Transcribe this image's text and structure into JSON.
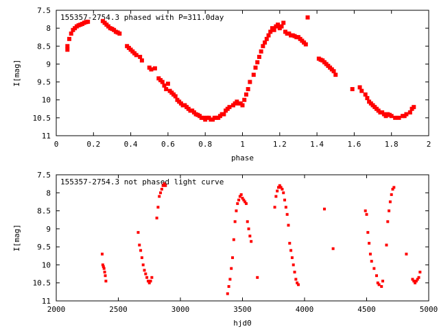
{
  "chart_data": [
    {
      "type": "scatter",
      "title": "155357-2754.3 phased with P=311.0day",
      "xlabel": "phase",
      "ylabel": "I[mag]",
      "xlim": [
        0,
        2
      ],
      "ylim": [
        7.5,
        11
      ],
      "y_inverted": true,
      "xticks": [
        "0",
        "0.2",
        "0.4",
        "0.6",
        "0.8",
        "1",
        "1.2",
        "1.4",
        "1.6",
        "1.8",
        "2"
      ],
      "yticks": [
        "7.5",
        "8",
        "8.5",
        "9",
        "9.5",
        "10",
        "10.5",
        "11"
      ],
      "marker_color": "#ff0000",
      "series": [
        {
          "x": [
            0.06,
            0.06,
            0.07,
            0.08,
            0.09,
            0.1,
            0.11,
            0.12,
            0.13,
            0.14,
            0.15,
            0.16,
            0.17,
            0.25,
            0.26,
            0.27,
            0.28,
            0.29,
            0.3,
            0.31,
            0.32,
            0.33,
            0.34,
            0.38,
            0.39,
            0.4,
            0.41,
            0.42,
            0.43,
            0.45,
            0.46,
            0.5,
            0.51,
            0.53,
            0.55,
            0.56,
            0.57,
            0.58,
            0.59,
            0.6,
            0.61,
            0.62,
            0.63,
            0.64,
            0.65,
            0.66,
            0.67,
            0.68,
            0.69,
            0.7,
            0.71,
            0.72,
            0.73,
            0.74,
            0.75,
            0.76,
            0.77,
            0.78,
            0.79,
            0.8,
            0.81,
            0.82,
            0.83,
            0.84,
            0.85,
            0.86,
            0.87,
            0.88,
            0.89,
            0.9,
            0.91,
            0.92,
            0.93,
            0.95,
            0.96,
            0.97,
            0.98,
            0.99,
            1.0,
            1.01,
            1.02,
            1.03,
            1.04,
            1.06,
            1.07,
            1.08,
            1.09,
            1.1,
            1.11,
            1.12,
            1.13,
            1.14,
            1.15,
            1.16,
            1.17,
            1.18,
            1.19,
            1.2,
            1.21,
            1.22,
            1.23,
            1.24,
            1.25,
            1.26,
            1.27,
            1.28,
            1.29,
            1.3,
            1.31,
            1.32,
            1.33,
            1.34,
            1.35,
            1.41,
            1.42,
            1.43,
            1.44,
            1.45,
            1.46,
            1.47,
            1.48,
            1.49,
            1.5,
            1.59,
            1.63,
            1.64,
            1.66,
            1.67,
            1.68,
            1.69,
            1.7,
            1.71,
            1.72,
            1.73,
            1.74,
            1.75,
            1.76,
            1.77,
            1.78,
            1.79,
            1.8,
            1.82,
            1.84,
            1.86,
            1.87,
            1.88,
            1.9,
            1.91,
            1.92
          ],
          "y": [
            8.6,
            8.5,
            8.3,
            8.15,
            8.05,
            8.0,
            7.95,
            7.92,
            7.9,
            7.88,
            7.85,
            7.83,
            7.82,
            7.8,
            7.85,
            7.9,
            7.95,
            8.0,
            8.02,
            8.05,
            8.1,
            8.12,
            8.15,
            8.5,
            8.55,
            8.6,
            8.65,
            8.7,
            8.75,
            8.8,
            8.9,
            9.1,
            9.15,
            9.12,
            9.4,
            9.45,
            9.5,
            9.6,
            9.7,
            9.55,
            9.75,
            9.8,
            9.85,
            9.9,
            10.0,
            10.05,
            10.1,
            10.15,
            10.15,
            10.2,
            10.25,
            10.3,
            10.3,
            10.35,
            10.4,
            10.42,
            10.45,
            10.5,
            10.5,
            10.55,
            10.5,
            10.5,
            10.55,
            10.55,
            10.5,
            10.5,
            10.5,
            10.45,
            10.4,
            10.4,
            10.3,
            10.25,
            10.2,
            10.15,
            10.1,
            10.05,
            10.1,
            10.1,
            10.15,
            10.0,
            9.85,
            9.7,
            9.5,
            9.3,
            9.1,
            8.95,
            8.8,
            8.65,
            8.5,
            8.4,
            8.3,
            8.2,
            8.1,
            8.0,
            8.05,
            7.95,
            7.9,
            8.0,
            7.95,
            7.85,
            8.1,
            8.15,
            8.15,
            8.2,
            8.2,
            8.22,
            8.25,
            8.25,
            8.3,
            8.35,
            8.4,
            8.45,
            7.7,
            8.85,
            8.88,
            8.9,
            8.95,
            9.0,
            9.05,
            9.1,
            9.15,
            9.2,
            9.3,
            9.7,
            9.65,
            9.75,
            9.85,
            9.95,
            10.05,
            10.1,
            10.15,
            10.2,
            10.25,
            10.3,
            10.35,
            10.35,
            10.4,
            10.45,
            10.4,
            10.42,
            10.45,
            10.5,
            10.5,
            10.45,
            10.45,
            10.4,
            10.35,
            10.25,
            10.2
          ]
        }
      ]
    },
    {
      "type": "scatter",
      "title": "155357-2754.3 not phased light curve",
      "xlabel": "hjd0",
      "ylabel": "I[mag]",
      "xlim": [
        2000,
        5000
      ],
      "ylim": [
        7.5,
        11
      ],
      "y_inverted": true,
      "xticks": [
        "2000",
        "2500",
        "3000",
        "3500",
        "4000",
        "4500",
        "5000"
      ],
      "yticks": [
        "7.5",
        "8",
        "8.5",
        "9",
        "9.5",
        "10",
        "10.5",
        "11"
      ],
      "marker_color": "#ff0000",
      "series": [
        {
          "x": [
            2370,
            2375,
            2380,
            2385,
            2390,
            2395,
            2400,
            2660,
            2670,
            2680,
            2690,
            2700,
            2710,
            2720,
            2730,
            2740,
            2750,
            2760,
            2770,
            2810,
            2820,
            2830,
            2840,
            2850,
            2860,
            2870,
            2880,
            3380,
            3390,
            3400,
            3410,
            3420,
            3430,
            3440,
            3450,
            3460,
            3470,
            3480,
            3490,
            3500,
            3510,
            3520,
            3530,
            3540,
            3550,
            3560,
            3570,
            3620,
            3760,
            3770,
            3780,
            3790,
            3800,
            3810,
            3820,
            3830,
            3840,
            3850,
            3860,
            3870,
            3880,
            3890,
            3900,
            3910,
            3920,
            3930,
            3940,
            3950,
            4160,
            4230,
            4490,
            4500,
            4510,
            4520,
            4530,
            4540,
            4560,
            4580,
            4590,
            4600,
            4620,
            4630,
            4660,
            4670,
            4680,
            4690,
            4700,
            4710,
            4720,
            4820,
            4870,
            4880,
            4890,
            4900,
            4910,
            4920,
            4930
          ],
          "y": [
            9.7,
            10.0,
            10.05,
            10.1,
            10.2,
            10.3,
            10.45,
            9.1,
            9.45,
            9.6,
            9.8,
            10.0,
            10.15,
            10.25,
            10.35,
            10.45,
            10.5,
            10.45,
            10.35,
            8.7,
            8.4,
            8.1,
            8.0,
            7.9,
            7.8,
            7.75,
            7.8,
            10.8,
            10.6,
            10.4,
            10.1,
            9.8,
            9.3,
            8.8,
            8.5,
            8.3,
            8.2,
            8.1,
            8.05,
            8.15,
            8.2,
            8.25,
            8.3,
            8.8,
            9.0,
            9.2,
            9.35,
            10.35,
            8.4,
            8.1,
            7.95,
            7.85,
            7.8,
            7.85,
            7.9,
            8.0,
            8.2,
            8.4,
            8.6,
            8.9,
            9.4,
            9.6,
            9.8,
            10.0,
            10.2,
            10.4,
            10.5,
            10.55,
            8.45,
            9.55,
            8.5,
            8.6,
            9.1,
            9.4,
            9.7,
            9.9,
            10.1,
            10.3,
            10.5,
            10.55,
            10.6,
            10.45,
            9.45,
            8.8,
            8.5,
            8.25,
            8.05,
            7.9,
            7.85,
            9.7,
            10.4,
            10.45,
            10.5,
            10.45,
            10.4,
            10.35,
            10.2
          ]
        }
      ]
    }
  ]
}
